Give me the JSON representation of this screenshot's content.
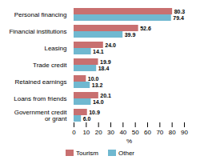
{
  "chart_data": {
    "type": "bar",
    "orientation": "horizontal",
    "categories": [
      "Personal financing",
      "Financial institutions",
      "Leasing",
      "Trade credit",
      "Retained earnings",
      "Loans from friends",
      "Government credit\nor grant"
    ],
    "series": [
      {
        "name": "Tourism",
        "color": "#c87070",
        "values": [
          80.3,
          52.6,
          24.0,
          19.9,
          10.0,
          20.1,
          10.9
        ],
        "value_labels": [
          "80.3",
          "52.6",
          "24.0",
          "19.9",
          "10.0",
          "20.1",
          "10.9"
        ]
      },
      {
        "name": "Other",
        "color": "#70b8d0",
        "values": [
          79.4,
          39.9,
          14.1,
          18.4,
          13.2,
          14.0,
          6.0
        ],
        "value_labels": [
          "79.4",
          "39.9",
          "14.1",
          "18.4",
          "13.2",
          "14.0",
          "6.0"
        ]
      }
    ],
    "xlabel": "%",
    "xlim": [
      0,
      90
    ],
    "xticks": [
      0,
      10,
      20,
      30,
      40,
      50,
      60,
      70,
      80,
      90
    ],
    "data_labels": true,
    "grid": false,
    "legend": "bottom"
  }
}
